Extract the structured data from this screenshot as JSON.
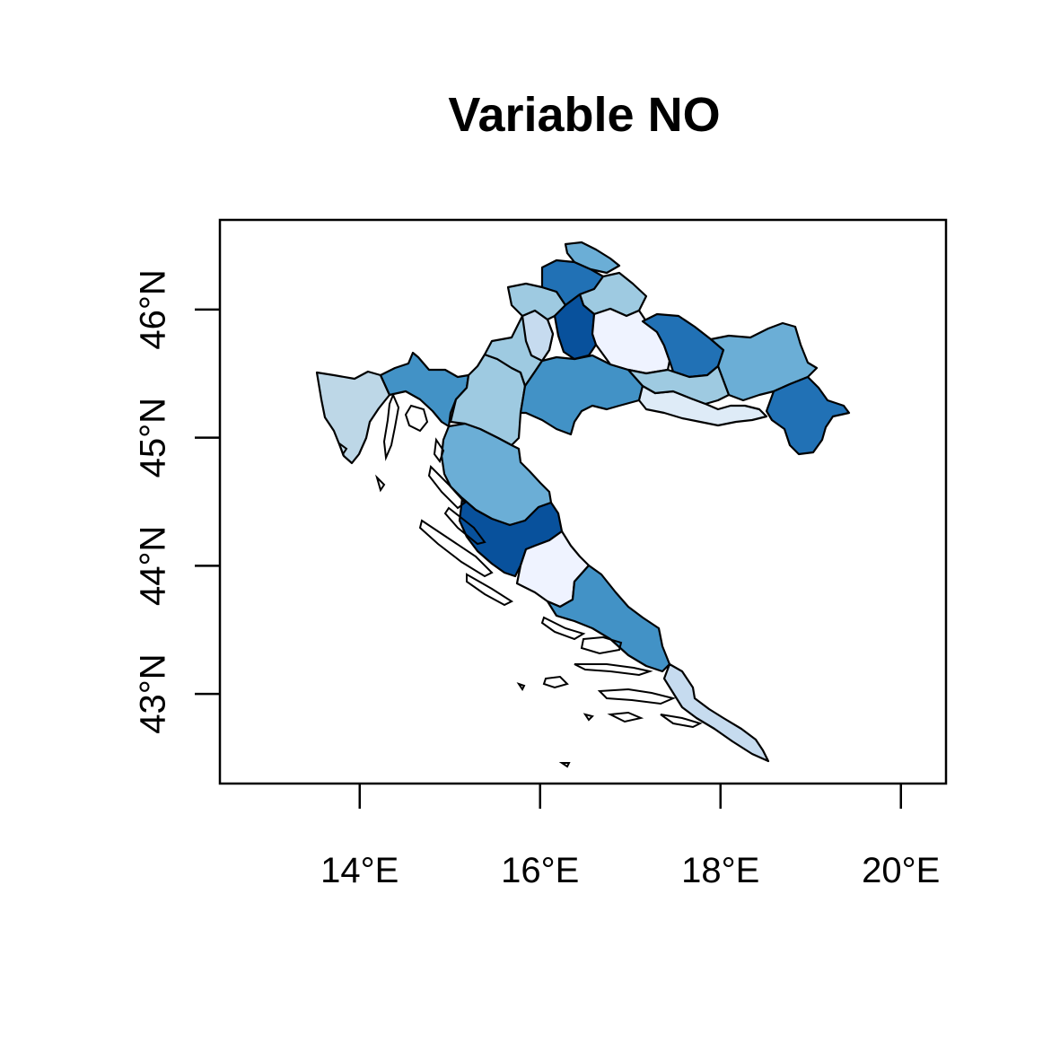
{
  "chart": {
    "title": "Variable NO",
    "type": "choropleth",
    "x_ticks": [
      "14°E",
      "16°E",
      "18°E",
      "20°E"
    ],
    "y_ticks": [
      "43°N",
      "44°N",
      "45°N",
      "46°N"
    ],
    "x_tick_values": [
      14,
      16,
      18,
      20
    ],
    "y_tick_values": [
      43,
      44,
      45,
      46
    ],
    "xlim": [
      12.45,
      20.5
    ],
    "ylim": [
      42.3,
      46.7
    ],
    "colors": {
      "lightest": "#eff3ff",
      "very_light": "#deebf7",
      "light": "#c6dbef",
      "light_mid": "#9ecae1",
      "mid": "#6baed6",
      "mid_dark": "#4292c6",
      "dark": "#2171b5",
      "darkest": "#08519c"
    }
  },
  "chart_data": {
    "type": "map",
    "title": "Variable NO",
    "xlim": [
      12.45,
      20.5
    ],
    "ylim": [
      42.3,
      46.7
    ],
    "grid": false,
    "legend": "none"
  }
}
